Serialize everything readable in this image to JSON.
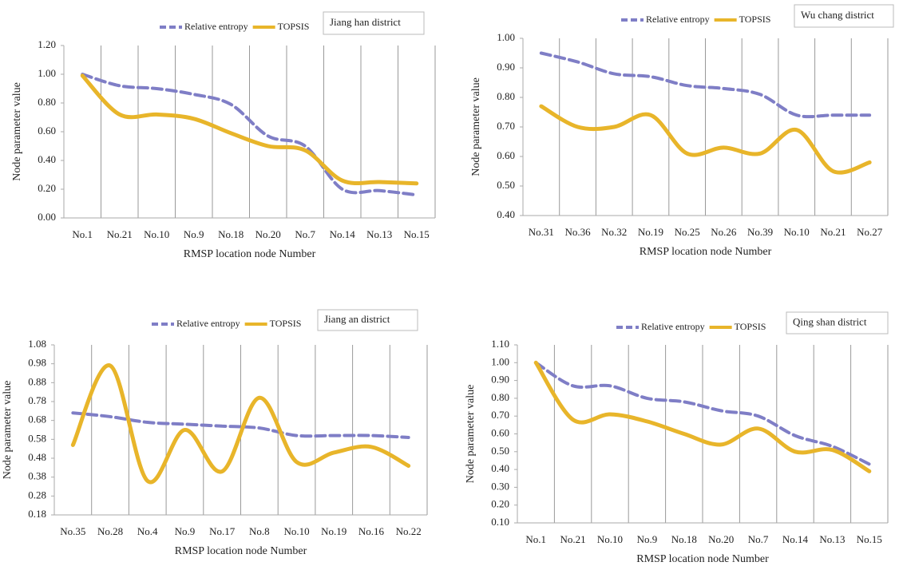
{
  "chart_data": [
    {
      "type": "line",
      "title": "Jiang han district",
      "x_label": "RMSP location node Number",
      "y_label": "Node parameter value",
      "legend": "top",
      "grid": "x",
      "smooth": true,
      "categories": [
        "No.1",
        "No.21",
        "No.10",
        "No.9",
        "No.18",
        "No.20",
        "No.7",
        "No.14",
        "No.13",
        "No.15"
      ],
      "series": [
        {
          "name": "Relative entropy",
          "color": "#7f7ec6",
          "dashed": true,
          "values": [
            1.0,
            0.92,
            0.9,
            0.86,
            0.79,
            0.57,
            0.5,
            0.2,
            0.19,
            0.16
          ]
        },
        {
          "name": "TOPSIS",
          "color": "#e8b52a",
          "dashed": false,
          "values": [
            0.99,
            0.72,
            0.72,
            0.69,
            0.59,
            0.5,
            0.47,
            0.26,
            0.25,
            0.24
          ]
        }
      ],
      "ylim": [
        0,
        1.2
      ],
      "yticks": [
        {
          "value": 0,
          "label": "0.00"
        },
        {
          "value": 0.2,
          "label": "0.20"
        },
        {
          "value": 0.4,
          "label": "0.40"
        },
        {
          "value": 0.6,
          "label": "0.60"
        },
        {
          "value": 0.8,
          "label": "0.80"
        },
        {
          "value": 1.0,
          "label": "1.00"
        },
        {
          "value": 1.2,
          "label": "1.20"
        }
      ]
    },
    {
      "type": "line",
      "title": "Wu chang district",
      "x_label": "RMSP location node Number",
      "y_label": "Node parameter value",
      "legend": "top",
      "grid": "x",
      "smooth": true,
      "categories": [
        "No.31",
        "No.36",
        "No.32",
        "No.19",
        "No.25",
        "No.26",
        "No.39",
        "No.10",
        "No.21",
        "No.27"
      ],
      "series": [
        {
          "name": "Relative entropy",
          "color": "#7f7ec6",
          "dashed": true,
          "values": [
            0.95,
            0.92,
            0.88,
            0.87,
            0.84,
            0.83,
            0.81,
            0.74,
            0.74,
            0.74
          ]
        },
        {
          "name": "TOPSIS",
          "color": "#e8b52a",
          "dashed": false,
          "values": [
            0.77,
            0.7,
            0.7,
            0.74,
            0.61,
            0.63,
            0.61,
            0.69,
            0.55,
            0.58
          ]
        }
      ],
      "ylim": [
        0.4,
        1.0
      ],
      "yticks": [
        {
          "value": 0.4,
          "label": "0.40"
        },
        {
          "value": 0.5,
          "label": "0.50"
        },
        {
          "value": 0.6,
          "label": "0.60"
        },
        {
          "value": 0.7,
          "label": "0.70"
        },
        {
          "value": 0.8,
          "label": "0.80"
        },
        {
          "value": 0.9,
          "label": "0.90"
        },
        {
          "value": 1.0,
          "label": "1.00"
        }
      ]
    },
    {
      "type": "line",
      "title": "Jiang an district",
      "x_label": "RMSP location node Number",
      "y_label": "Node parameter value",
      "legend": "top",
      "grid": "x",
      "smooth": true,
      "categories": [
        "No.35",
        "No.28",
        "No.4",
        "No.9",
        "No.17",
        "No.8",
        "No.10",
        "No.19",
        "No.16",
        "No.22"
      ],
      "series": [
        {
          "name": "Relative entropy",
          "color": "#7f7ec6",
          "dashed": true,
          "values": [
            0.72,
            0.7,
            0.67,
            0.66,
            0.65,
            0.64,
            0.6,
            0.6,
            0.6,
            0.59
          ]
        },
        {
          "name": "TOPSIS",
          "color": "#e8b52a",
          "dashed": false,
          "values": [
            0.55,
            0.97,
            0.36,
            0.63,
            0.41,
            0.8,
            0.46,
            0.51,
            0.54,
            0.44
          ]
        }
      ],
      "ylim": [
        0.18,
        1.08
      ],
      "yticks": [
        0.18,
        0.28,
        0.38,
        0.48,
        0.58,
        0.68,
        0.78,
        0.88,
        0.98,
        1.08
      ]
    },
    {
      "type": "line",
      "title": "Qing shan district",
      "x_label": "RMSP location node Number",
      "y_label": "Node parameter value",
      "legend": "top",
      "grid": "x",
      "smooth": true,
      "categories": [
        "No.1",
        "No.21",
        "No.10",
        "No.9",
        "No.18",
        "No.20",
        "No.7",
        "No.14",
        "No.13",
        "No.15"
      ],
      "series": [
        {
          "name": "Relative entropy",
          "color": "#7f7ec6",
          "dashed": true,
          "values": [
            1.0,
            0.87,
            0.87,
            0.8,
            0.78,
            0.73,
            0.7,
            0.59,
            0.53,
            0.43
          ]
        },
        {
          "name": "TOPSIS",
          "color": "#e8b52a",
          "dashed": false,
          "values": [
            1.0,
            0.68,
            0.71,
            0.67,
            0.6,
            0.54,
            0.63,
            0.5,
            0.51,
            0.39
          ]
        }
      ],
      "ylim": [
        0.1,
        1.1
      ],
      "yticks": [
        {
          "value": 0.1,
          "label": "0.10"
        },
        {
          "value": 0.2,
          "label": "0.20"
        },
        {
          "value": 0.3,
          "label": "0.30"
        },
        {
          "value": 0.4,
          "label": "0.40"
        },
        {
          "value": 0.5,
          "label": "0.50"
        },
        {
          "value": 0.6,
          "label": "0.60"
        },
        {
          "value": 0.7,
          "label": "0.70"
        },
        {
          "value": 0.8,
          "label": "0.80"
        },
        {
          "value": 0.9,
          "label": "0.90"
        },
        {
          "value": 1.0,
          "label": "1.00"
        },
        {
          "value": 1.1,
          "label": "1.10"
        }
      ]
    }
  ]
}
